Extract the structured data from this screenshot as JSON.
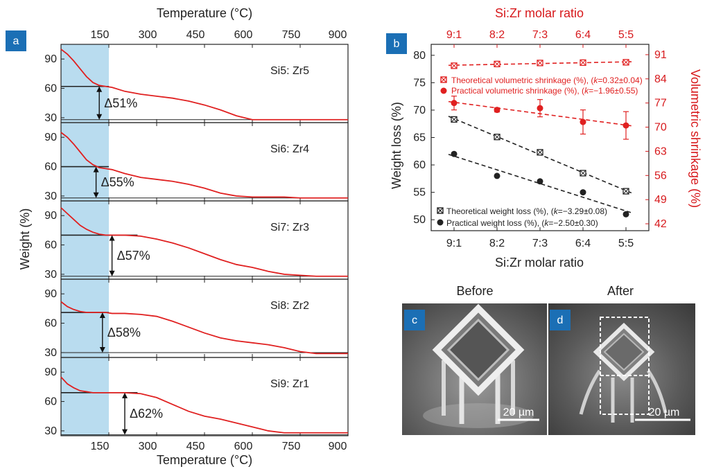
{
  "chart_data": [
    {
      "panel": "a",
      "type": "line",
      "top_xlabel": "Temperature (°C)",
      "xlabel": "Temperature (°C)",
      "ylabel": "Weight (%)",
      "xlim": [
        0,
        900
      ],
      "x_ticks": [
        "150",
        "300",
        "450",
        "600",
        "750",
        "900"
      ],
      "ylim_each": [
        25,
        105
      ],
      "y_ticks": [
        "30",
        "60",
        "90"
      ],
      "shaded_region": [
        0,
        150
      ],
      "line_color": "#e02020",
      "shade_color": "#b9dcef",
      "subplots": [
        {
          "label": "Si5: Zr5",
          "delta_label": "Δ51%",
          "plateau_top": 62,
          "bottom": 28,
          "line_end": 150,
          "arrow_x": 120,
          "x": [
            0,
            20,
            40,
            60,
            80,
            100,
            120,
            140,
            160,
            200,
            250,
            300,
            350,
            400,
            450,
            500,
            550,
            600,
            650,
            700,
            750,
            800,
            850,
            900
          ],
          "y": [
            100,
            95,
            88,
            80,
            72,
            66,
            63,
            62,
            61,
            57,
            54,
            52,
            50,
            47,
            43,
            38,
            32,
            28,
            28,
            28,
            28,
            28,
            28,
            28
          ]
        },
        {
          "label": "Si6: Zr4",
          "delta_label": "Δ55%",
          "plateau_top": 60,
          "bottom": 28,
          "line_end": 150,
          "arrow_x": 110,
          "x": [
            0,
            20,
            40,
            60,
            80,
            100,
            120,
            140,
            160,
            200,
            250,
            300,
            350,
            400,
            450,
            500,
            550,
            600,
            650,
            700,
            750,
            800,
            850,
            900
          ],
          "y": [
            95,
            90,
            83,
            75,
            67,
            62,
            59,
            58,
            57,
            53,
            49,
            47,
            45,
            42,
            38,
            33,
            30,
            29,
            29,
            29,
            28,
            28,
            28,
            28
          ]
        },
        {
          "label": "Si7: Zr3",
          "delta_label": "Δ57%",
          "plateau_top": 70,
          "bottom": 28,
          "line_end": 240,
          "arrow_x": 160,
          "x": [
            0,
            20,
            40,
            60,
            80,
            100,
            120,
            140,
            160,
            200,
            250,
            300,
            350,
            400,
            450,
            500,
            550,
            600,
            650,
            700,
            750,
            800,
            850,
            900
          ],
          "y": [
            98,
            92,
            86,
            80,
            76,
            73,
            71,
            70,
            70,
            70,
            69,
            66,
            62,
            57,
            51,
            45,
            40,
            37,
            33,
            30,
            29,
            28,
            28,
            28
          ]
        },
        {
          "label": "Si8: Zr2",
          "delta_label": "Δ58%",
          "plateau_top": 71,
          "bottom": 30,
          "line_end": 150,
          "arrow_x": 130,
          "x": [
            0,
            20,
            40,
            60,
            80,
            100,
            120,
            140,
            160,
            200,
            250,
            300,
            350,
            400,
            450,
            500,
            550,
            600,
            650,
            700,
            750,
            800,
            850,
            900
          ],
          "y": [
            82,
            77,
            74,
            72,
            71,
            71,
            71,
            71,
            70,
            70,
            69,
            67,
            62,
            56,
            50,
            45,
            42,
            40,
            38,
            35,
            31,
            29,
            29,
            29
          ]
        },
        {
          "label": "Si9: Zr1",
          "delta_label": "Δ62%",
          "plateau_top": 69,
          "bottom": 26,
          "line_end": 240,
          "arrow_x": 200,
          "x": [
            0,
            20,
            40,
            60,
            80,
            100,
            120,
            140,
            160,
            200,
            250,
            300,
            350,
            400,
            450,
            500,
            550,
            600,
            650,
            700,
            750,
            800,
            850,
            900
          ],
          "y": [
            85,
            78,
            74,
            71,
            70,
            69,
            69,
            69,
            69,
            69,
            68,
            64,
            57,
            50,
            45,
            42,
            38,
            34,
            30,
            28,
            28,
            28,
            28,
            28
          ]
        }
      ]
    },
    {
      "panel": "b",
      "type": "scatter",
      "categories": [
        "9:1",
        "8:2",
        "7:3",
        "6:4",
        "5:5"
      ],
      "xlabel": "Si:Zr molar ratio",
      "top_xlabel": "Si:Zr molar ratio",
      "ylabel": "Weight loss (%)",
      "ylabel_right": "Volumetric shrinkage (%)",
      "ylim": [
        48,
        82
      ],
      "ylim_right": [
        40,
        94
      ],
      "y_ticks": [
        50,
        55,
        60,
        65,
        70,
        75,
        80
      ],
      "y_ticks_right": [
        42,
        49,
        56,
        63,
        70,
        77,
        84,
        91
      ],
      "series": [
        {
          "name": "Theoretical volumetric shrinkage (%), (k=0.32±0.04)",
          "legend_prefix": "Theoretical volumetric shrinkage (%), (",
          "legend_k": "k",
          "legend_suffix": "=0.32±0.04)",
          "axis": "right",
          "color": "#e02020",
          "marker": "square-x",
          "values": [
            87.8,
            88.3,
            88.6,
            88.7,
            88.8
          ]
        },
        {
          "name": "Practical volumetric shrinkage (%), (k=−1.96±0.55)",
          "legend_prefix": "Practical volumetric shrinkage (%), (",
          "legend_k": "k",
          "legend_suffix": "=−1.96±0.55)",
          "axis": "right",
          "color": "#e02020",
          "marker": "circle",
          "values": [
            77.0,
            75.0,
            75.5,
            71.5,
            70.5
          ],
          "errors": [
            2.0,
            0.6,
            2.5,
            3.5,
            4.0
          ]
        },
        {
          "name": "Theoretical weight loss (%), (k=−3.29±0.08)",
          "legend_prefix": "Theoretical weight loss (%), (",
          "legend_k": "k",
          "legend_suffix": "=−3.29±0.08)",
          "axis": "left",
          "color": "#222222",
          "marker": "square-x",
          "values": [
            68.3,
            65.1,
            62.3,
            58.5,
            55.2
          ]
        },
        {
          "name": "Practical weight loss (%), (k=−2.50±0.30)",
          "legend_prefix": "Practical weight loss (%), (",
          "legend_k": "k",
          "legend_suffix": "=−2.50±0.30)",
          "axis": "left",
          "color": "#222222",
          "marker": "circle",
          "values": [
            62.0,
            58.0,
            57.0,
            55.0,
            51.0
          ]
        }
      ]
    }
  ],
  "panels": {
    "a": "a",
    "b": "b",
    "c": "c",
    "d": "d"
  },
  "sem": {
    "before_title": "Before",
    "after_title": "After",
    "scale_c": "20 µm",
    "scale_d": "20 µm"
  }
}
